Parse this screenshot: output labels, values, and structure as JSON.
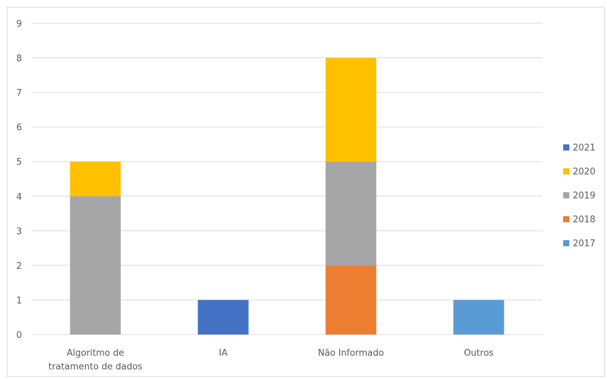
{
  "chart_data": {
    "type": "bar",
    "stacked": true,
    "categories": [
      [
        "Algoritmo de",
        "tratamento de dados"
      ],
      [
        "IA"
      ],
      [
        "Não Informado"
      ],
      [
        "Outros"
      ]
    ],
    "series": [
      {
        "name": "2017",
        "color": "#5B9BD5",
        "values": [
          0,
          0,
          0,
          1
        ]
      },
      {
        "name": "2018",
        "color": "#ED7D31",
        "values": [
          0,
          0,
          2,
          0
        ]
      },
      {
        "name": "2019",
        "color": "#A5A5A5",
        "values": [
          4,
          0,
          3,
          0
        ]
      },
      {
        "name": "2020",
        "color": "#FFC000",
        "values": [
          1,
          0,
          3,
          0
        ]
      },
      {
        "name": "2021",
        "color": "#4472C4",
        "values": [
          0,
          1,
          0,
          0
        ]
      }
    ],
    "legend_order": [
      "2021",
      "2020",
      "2019",
      "2018",
      "2017"
    ],
    "ylim": [
      0,
      9
    ],
    "yticks": [
      "0",
      "1",
      "2",
      "3",
      "4",
      "5",
      "6",
      "7",
      "8",
      "9"
    ],
    "grid": true,
    "gridline_color": "#d9d9d9",
    "legend_position": "right",
    "title": "",
    "xlabel": "",
    "ylabel": ""
  }
}
